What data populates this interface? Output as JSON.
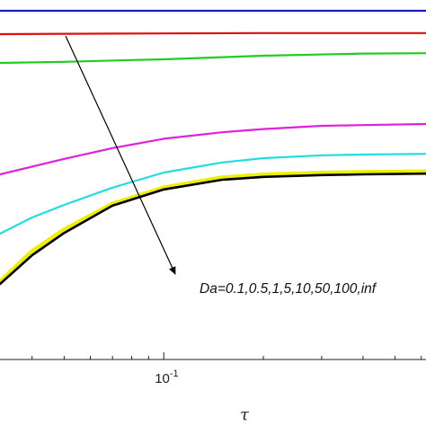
{
  "chart_data": {
    "type": "line",
    "xscale": "log",
    "xlim": [
      0.032,
      0.62
    ],
    "ylim": [
      0,
      1
    ],
    "xlabel": "τ",
    "ylabel": "",
    "title": "",
    "grid": false,
    "xticks": [
      {
        "value": 0.1,
        "base": "10",
        "exp": "-1"
      }
    ],
    "annotation": {
      "text": "Da=0.1,0.5,1,5,10,50,100,inf",
      "arrow": "pointing toward increasing Da (downward)"
    },
    "series": [
      {
        "color": "#1f1fbf",
        "width": 2.2,
        "x": [
          0.032,
          0.05,
          0.1,
          0.2,
          0.4,
          0.62
        ],
        "y": [
          0.97,
          0.97,
          0.97,
          0.97,
          0.97,
          0.97
        ]
      },
      {
        "color": "#dd1111",
        "width": 2.2,
        "x": [
          0.032,
          0.05,
          0.1,
          0.2,
          0.4,
          0.62
        ],
        "y": [
          0.905,
          0.906,
          0.907,
          0.908,
          0.908,
          0.908
        ]
      },
      {
        "color": "#22cc22",
        "width": 2.2,
        "x": [
          0.032,
          0.05,
          0.08,
          0.1,
          0.2,
          0.4,
          0.62
        ],
        "y": [
          0.825,
          0.828,
          0.833,
          0.835,
          0.845,
          0.851,
          0.852
        ]
      },
      {
        "color": "#dd22dd",
        "width": 2.2,
        "x": [
          0.032,
          0.05,
          0.07,
          0.1,
          0.15,
          0.2,
          0.3,
          0.4,
          0.62
        ],
        "y": [
          0.515,
          0.558,
          0.588,
          0.614,
          0.632,
          0.641,
          0.65,
          0.652,
          0.655
        ]
      },
      {
        "color": "#22dddd",
        "width": 2.2,
        "x": [
          0.032,
          0.04,
          0.05,
          0.07,
          0.1,
          0.15,
          0.2,
          0.3,
          0.4,
          0.62
        ],
        "y": [
          0.35,
          0.395,
          0.43,
          0.478,
          0.52,
          0.548,
          0.56,
          0.568,
          0.57,
          0.572
        ]
      },
      {
        "color": "#eeee00",
        "width": 5.5,
        "x": [
          0.032,
          0.04,
          0.05,
          0.07,
          0.1,
          0.15,
          0.2,
          0.3,
          0.4,
          0.62
        ],
        "y": [
          0.215,
          0.3,
          0.36,
          0.432,
          0.477,
          0.505,
          0.513,
          0.518,
          0.52,
          0.522
        ]
      },
      {
        "color": "#000000",
        "width": 2.6,
        "x": [
          0.032,
          0.04,
          0.05,
          0.07,
          0.1,
          0.15,
          0.2,
          0.3,
          0.4,
          0.62
        ],
        "y": [
          0.21,
          0.29,
          0.352,
          0.428,
          0.473,
          0.5,
          0.508,
          0.513,
          0.515,
          0.517
        ]
      }
    ]
  }
}
